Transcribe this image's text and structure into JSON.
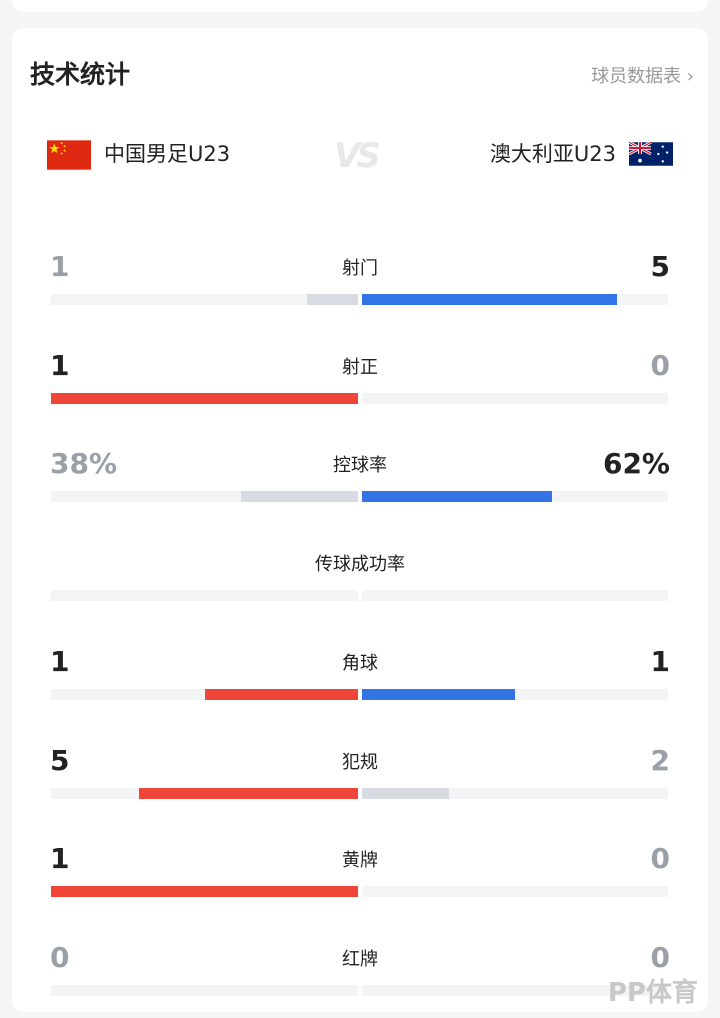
{
  "header": {
    "title": "技术统计",
    "player_stats_link": "球员数据表 ›"
  },
  "teams": {
    "home": {
      "name": "中国男足U23",
      "flag": "china-flag"
    },
    "vs": "VS",
    "away": {
      "name": "澳大利亚U23",
      "flag": "australia-flag"
    }
  },
  "colors": {
    "home": "#f0463a",
    "away": "#3273e6",
    "neutral": "#d8dce2",
    "track": "#f3f4f6",
    "lead_text": "#222222",
    "trail_text": "#9aa0a8"
  },
  "stats": [
    {
      "label": "射门",
      "home": "1",
      "away": "5",
      "home_value": 1,
      "away_value": 5
    },
    {
      "label": "射正",
      "home": "1",
      "away": "0",
      "home_value": 1,
      "away_value": 0
    },
    {
      "label": "控球率",
      "home": "38%",
      "away": "62%",
      "home_value": 38,
      "away_value": 62
    },
    {
      "label": "传球成功率",
      "home": "",
      "away": "",
      "home_value": 0,
      "away_value": 0
    },
    {
      "label": "角球",
      "home": "1",
      "away": "1",
      "home_value": 1,
      "away_value": 1
    },
    {
      "label": "犯规",
      "home": "5",
      "away": "2",
      "home_value": 5,
      "away_value": 2
    },
    {
      "label": "黄牌",
      "home": "1",
      "away": "0",
      "home_value": 1,
      "away_value": 0
    },
    {
      "label": "红牌",
      "home": "0",
      "away": "0",
      "home_value": 0,
      "away_value": 0
    }
  ],
  "watermark": "PP体育"
}
